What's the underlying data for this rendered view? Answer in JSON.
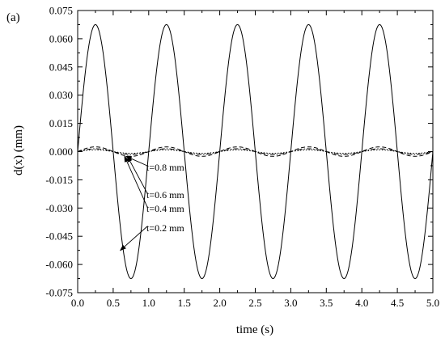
{
  "chart_data": {
    "type": "line",
    "panel_label": "(a)",
    "title": "",
    "xlabel": "time (s)",
    "ylabel": "d(x) (mm)",
    "xlim": [
      0.0,
      5.0
    ],
    "ylim": [
      -0.075,
      0.075
    ],
    "x_ticks": [
      0.0,
      0.5,
      1.0,
      1.5,
      2.0,
      2.5,
      3.0,
      3.5,
      4.0,
      4.5,
      5.0
    ],
    "x_tick_labels": [
      "0.0",
      "0.5",
      "1.0",
      "1.5",
      "2.0",
      "2.5",
      "3.0",
      "3.5",
      "4.0",
      "4.5",
      "5.0"
    ],
    "y_ticks": [
      0.075,
      0.06,
      0.045,
      0.03,
      0.015,
      0.0,
      -0.015,
      -0.03,
      -0.045,
      -0.06,
      -0.075
    ],
    "y_tick_labels": [
      "0.075",
      "0.060",
      "0.045",
      "0.030",
      "0.015",
      "0.000",
      "-0.015",
      "-0.030",
      "-0.045",
      "-0.060",
      "-0.075"
    ],
    "grid": false,
    "series": [
      {
        "name": "t=0.2 mm",
        "amplitude": 0.0675,
        "frequency_hz": 1.0,
        "phase": 0.0,
        "offset": 0.0,
        "style": "solid",
        "color": "#000000"
      },
      {
        "name": "t=0.4 mm",
        "amplitude": 0.0025,
        "frequency_hz": 1.0,
        "phase": 0.0,
        "offset": 0.0,
        "style": "dash",
        "color": "#000000"
      },
      {
        "name": "t=0.6 mm",
        "amplitude": 0.0015,
        "frequency_hz": 1.0,
        "phase": 0.0,
        "offset": 0.0,
        "style": "dashdot",
        "color": "#000000"
      },
      {
        "name": "t=0.8 mm",
        "amplitude": 0.0009,
        "frequency_hz": 1.0,
        "phase": 0.0,
        "offset": 0.0,
        "style": "dot",
        "color": "#000000"
      }
    ],
    "annotations": [
      {
        "text": "t=0.8 mm",
        "arrow_to": [
          0.68,
          -0.0025
        ]
      },
      {
        "text": "t=0.6 mm",
        "arrow_to": [
          0.7,
          -0.0025
        ]
      },
      {
        "text": "t=0.4 mm",
        "arrow_to": [
          0.66,
          -0.0025
        ]
      },
      {
        "text": "t=0.2 mm",
        "arrow_to": [
          0.6,
          -0.0525
        ]
      }
    ]
  }
}
